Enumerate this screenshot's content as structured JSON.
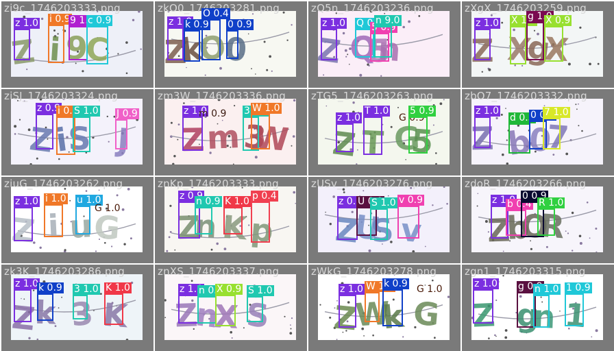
{
  "tiles": [
    {
      "filename": "zi9c_1746203333.png",
      "bg": "#eef0f8",
      "glyphs": [
        {
          "ch": "Z",
          "color": "#8a9a6a"
        },
        {
          "ch": "i",
          "color": "#6f8f4f"
        },
        {
          "ch": "9",
          "color": "#8a9f5a"
        },
        {
          "ch": "C",
          "color": "#8fa858"
        }
      ],
      "dets": [
        {
          "label": "z 1.0",
          "color": "#7b2fe0"
        },
        {
          "label": "i 0.9",
          "color": "#f07828"
        },
        {
          "label": "9 1.0",
          "color": "#b020d0"
        },
        {
          "label": "c 0.9",
          "color": "#20c8d8"
        }
      ]
    },
    {
      "filename": "zkO0_1746203281.png",
      "bg": "#f7f8f2",
      "glyphs": [
        {
          "ch": "Z",
          "color": "#7d5f4f"
        },
        {
          "ch": "k",
          "color": "#6a5040"
        },
        {
          "ch": "O",
          "color": "#8f9f70"
        },
        {
          "ch": "0",
          "color": "#5a6f88"
        }
      ],
      "dets": [
        {
          "label": "z 1.0",
          "color": "#7b2fe0"
        },
        {
          "label": "k 0.9",
          "color": "#1040c8"
        },
        {
          "label": "O 0.4",
          "color": "#1040c8"
        },
        {
          "label": "0 0.9",
          "color": "#1040c8"
        }
      ]
    },
    {
      "filename": "zQ5n_1746203236.png",
      "bg": "#fbeef8",
      "glyphs": [
        {
          "ch": "Z",
          "color": "#7a74b0"
        },
        {
          "ch": "Q",
          "color": "#a06ab8"
        },
        {
          "ch": "5",
          "color": "#b078b8"
        },
        {
          "ch": "n",
          "color": "#a870b0"
        }
      ],
      "dets": [
        {
          "label": "z 1.0",
          "color": "#7b2fe0"
        },
        {
          "label": "Q 0.9",
          "color": "#20c8d8"
        },
        {
          "label": "5 0.9",
          "color": "#f040b0"
        },
        {
          "label": "n 9.0",
          "color": "#20c8b0"
        }
      ]
    },
    {
      "filename": "zXgX_1746203259.png",
      "bg": "#f3f6f6",
      "glyphs": [
        {
          "ch": "Z",
          "color": "#8a6a5a"
        },
        {
          "ch": "X",
          "color": "#9a7a6a"
        },
        {
          "ch": "g",
          "color": "#8a6858"
        },
        {
          "ch": "X",
          "color": "#9a7860"
        }
      ],
      "dets": [
        {
          "label": "z 1.0",
          "color": "#7b2fe0"
        },
        {
          "label": "X 1.0",
          "color": "#98e030"
        },
        {
          "label": "g 1.0",
          "color": "#7a0a50"
        },
        {
          "label": "X 0.9",
          "color": "#98e030"
        }
      ]
    },
    {
      "filename": "ziSJ_1746203324.png",
      "bg": "#f4f2fb",
      "glyphs": [
        {
          "ch": "Z",
          "color": "#6a7ab0"
        },
        {
          "ch": "i",
          "color": "#5a70a8"
        },
        {
          "ch": "S",
          "color": "#6878b0"
        },
        {
          "ch": "J",
          "color": "#8a80c0"
        }
      ],
      "dets": [
        {
          "label": "z 0.9",
          "color": "#7b2fe0"
        },
        {
          "label": "i 0.9",
          "color": "#f07828"
        },
        {
          "label": "S 1.0",
          "color": "#20c8b0"
        },
        {
          "label": "J 0.9",
          "color": "#f060c8"
        }
      ]
    },
    {
      "filename": "zm3W_1746203336.png",
      "bg": "#fbf0f0",
      "glyphs": [
        {
          "ch": "Z",
          "color": "#b04060"
        },
        {
          "ch": "m",
          "color": "#b05060"
        },
        {
          "ch": "3",
          "color": "#a04050"
        },
        {
          "ch": "W",
          "color": "#b04858"
        }
      ],
      "dets": [
        {
          "label": "z 1.0",
          "color": "#7b2fe0"
        },
        {
          "label": "m 0.9",
          "color": "#3a1a10",
          "plain": true
        },
        {
          "label": "3 0.9",
          "color": "#20c8b0"
        },
        {
          "label": "W 1.0",
          "color": "#f07828"
        }
      ]
    },
    {
      "filename": "zTG5_1746203263.png",
      "bg": "#f4f7ee",
      "glyphs": [
        {
          "ch": "Z",
          "color": "#5f8a50"
        },
        {
          "ch": "T",
          "color": "#6a9a58"
        },
        {
          "ch": "G",
          "color": "#6a9a60"
        },
        {
          "ch": "5",
          "color": "#5a9050"
        }
      ],
      "dets": [
        {
          "label": "z 1.0",
          "color": "#7b2fe0"
        },
        {
          "label": "T 1.0",
          "color": "#7b2fe0"
        },
        {
          "label": "G 0.9",
          "color": "#4a1a08",
          "plain": true
        },
        {
          "label": "5 0.9",
          "color": "#30d040"
        }
      ]
    },
    {
      "filename": "zbO7_1746203332.png",
      "bg": "#f6f3fb",
      "glyphs": [
        {
          "ch": "Z",
          "color": "#7a70b0"
        },
        {
          "ch": "b",
          "color": "#8878b8"
        },
        {
          "ch": "0",
          "color": "#8a80c0"
        },
        {
          "ch": "7",
          "color": "#8078b8"
        }
      ],
      "dets": [
        {
          "label": "z 1.0",
          "color": "#7b2fe0"
        },
        {
          "label": "d 0.3",
          "color": "#20b838"
        },
        {
          "label": "0 0.4",
          "color": "#1040c8"
        },
        {
          "label": "7 1.0",
          "color": "#d8e828"
        }
      ]
    },
    {
      "filename": "ziuG_1746203262.png",
      "bg": "#ffffff",
      "glyphs": [
        {
          "ch": "Z",
          "color": "#b8c0c8"
        },
        {
          "ch": "i",
          "color": "#a8b0b8"
        },
        {
          "ch": "u",
          "color": "#98a8a0"
        },
        {
          "ch": "G",
          "color": "#c0c8c0"
        }
      ],
      "dets": [
        {
          "label": "z 1.0",
          "color": "#7b2fe0"
        },
        {
          "label": "i 1.0",
          "color": "#f07828"
        },
        {
          "label": "u 1.0",
          "color": "#20a8e0"
        },
        {
          "label": "G 1.0",
          "color": "#4a1a08",
          "plain": true
        }
      ]
    },
    {
      "filename": "znKp_1746203333.png",
      "bg": "#f8f6f2",
      "glyphs": [
        {
          "ch": "Z",
          "color": "#7a9070"
        },
        {
          "ch": "n",
          "color": "#7a9078"
        },
        {
          "ch": "K",
          "color": "#8a9a80"
        },
        {
          "ch": "p",
          "color": "#809878"
        }
      ],
      "dets": [
        {
          "label": "z 0.9",
          "color": "#7b2fe0"
        },
        {
          "label": "n 0.9",
          "color": "#20c8b0"
        },
        {
          "label": "K 1.0",
          "color": "#f03848"
        },
        {
          "label": "p 0.4",
          "color": "#f04050"
        }
      ]
    },
    {
      "filename": "zUSv_1746203276.png",
      "bg": "#f3f0fb",
      "glyphs": [
        {
          "ch": "Z",
          "color": "#6a88c0"
        },
        {
          "ch": "U",
          "color": "#7890c8"
        },
        {
          "ch": "S",
          "color": "#6a88c0"
        },
        {
          "ch": "v",
          "color": "#7890c8"
        }
      ],
      "dets": [
        {
          "label": "z 0.9",
          "color": "#7b2fe0"
        },
        {
          "label": "U 0.9",
          "color": "#5a1040"
        },
        {
          "label": "S 1.0",
          "color": "#20c8b0"
        },
        {
          "label": "v 0.9",
          "color": "#f040b0"
        }
      ]
    },
    {
      "filename": "zdoR_1746203266.png",
      "bg": "#f7f5fb",
      "glyphs": [
        {
          "ch": "Z",
          "color": "#6a6858"
        },
        {
          "ch": "b",
          "color": "#6a6a58"
        },
        {
          "ch": "O",
          "color": "#686858"
        },
        {
          "ch": "R",
          "color": "#6a7060"
        }
      ],
      "dets": [
        {
          "label": "z 1.0",
          "color": "#7b2fe0"
        },
        {
          "label": "b 0.4",
          "color": "#f040b0"
        },
        {
          "label": "0 0.9",
          "color": "#0a0a30"
        },
        {
          "label": "R 1.0",
          "color": "#30d040"
        }
      ]
    },
    {
      "filename": "zk3K_1746203286.png",
      "bg": "#eef4f8",
      "glyphs": [
        {
          "ch": "Z",
          "color": "#8a70a8"
        },
        {
          "ch": "k",
          "color": "#8a78a8"
        },
        {
          "ch": "3",
          "color": "#9a88b0"
        },
        {
          "ch": "K",
          "color": "#8a78a8"
        }
      ],
      "dets": [
        {
          "label": "z 1.0",
          "color": "#7b2fe0"
        },
        {
          "label": "k 0.9",
          "color": "#1040c8"
        },
        {
          "label": "3 1.0",
          "color": "#20c8b0"
        },
        {
          "label": "K 1.0",
          "color": "#f03848"
        }
      ]
    },
    {
      "filename": "znXS_1746203337.png",
      "bg": "#fbf6f8",
      "glyphs": [
        {
          "ch": "Z",
          "color": "#9a78b8"
        },
        {
          "ch": "n",
          "color": "#a080c0"
        },
        {
          "ch": "X",
          "color": "#a078b8"
        },
        {
          "ch": "S",
          "color": "#9880b8"
        }
      ],
      "dets": [
        {
          "label": "z 1.0",
          "color": "#7b2fe0"
        },
        {
          "label": "n 0.9",
          "color": "#20c8b0"
        },
        {
          "label": "X 0.9",
          "color": "#98e030"
        },
        {
          "label": "S 1.0",
          "color": "#20c8b0"
        }
      ]
    },
    {
      "filename": "zWkG_1746203278.png",
      "bg": "#ffffff",
      "glyphs": [
        {
          "ch": "Z",
          "color": "#6a8a50"
        },
        {
          "ch": "W",
          "color": "#6a8a58"
        },
        {
          "ch": "k",
          "color": "#5a7a48"
        },
        {
          "ch": "G",
          "color": "#6a8a58"
        }
      ],
      "dets": [
        {
          "label": "z 1.0",
          "color": "#7b2fe0"
        },
        {
          "label": "W 1.0",
          "color": "#f07828"
        },
        {
          "label": "k 0.9",
          "color": "#1040c8"
        },
        {
          "label": "G 1.0",
          "color": "#4a1a08",
          "plain": true
        }
      ]
    },
    {
      "filename": "zgn1_1746203315.png",
      "bg": "#ffffff",
      "glyphs": [
        {
          "ch": "Z",
          "color": "#3a9870"
        },
        {
          "ch": "g",
          "color": "#3a9070"
        },
        {
          "ch": "n",
          "color": "#3a9878"
        },
        {
          "ch": "1",
          "color": "#3a9070"
        }
      ],
      "dets": [
        {
          "label": "z 1.0",
          "color": "#7b2fe0"
        },
        {
          "label": "g 0.9",
          "color": "#5a1040"
        },
        {
          "label": "n 1.0",
          "color": "#20c8d8"
        },
        {
          "label": "1 0.9",
          "color": "#20c8d8"
        }
      ]
    }
  ]
}
